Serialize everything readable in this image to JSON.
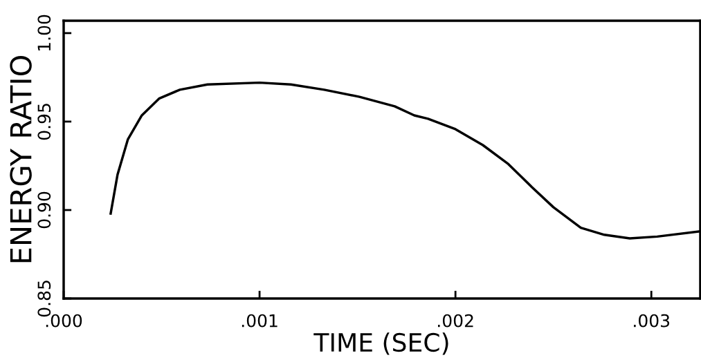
{
  "chart_data": {
    "type": "line",
    "xlabel": "TIME (SEC)",
    "ylabel": "ENERGY RATIO",
    "x": [
      0.00024,
      0.000275,
      0.000328,
      0.000399,
      0.000487,
      0.000593,
      0.000734,
      0.001,
      0.00116,
      0.00133,
      0.00151,
      0.00169,
      0.00179,
      0.00186,
      0.002,
      0.00214,
      0.00227,
      0.00239,
      0.0025,
      0.00264,
      0.00276,
      0.00289,
      0.00303,
      0.00325
    ],
    "series": [
      {
        "color": "#000000",
        "values": [
          0.898,
          0.92,
          0.94,
          0.9535,
          0.963,
          0.968,
          0.971,
          0.972,
          0.971,
          0.968,
          0.964,
          0.9586,
          0.9535,
          0.9516,
          0.9457,
          0.9367,
          0.926,
          0.913,
          0.9016,
          0.89,
          0.886,
          0.884,
          0.885,
          0.888
        ]
      }
    ],
    "xlim": [
      0,
      0.00325
    ],
    "xticks": [
      {
        "value": 0,
        "label": ".000"
      },
      {
        "value": 0.001,
        "label": ".001"
      },
      {
        "value": 0.002,
        "label": ".002"
      },
      {
        "value": 0.003,
        "label": ".003"
      }
    ],
    "ylim": [
      0.85,
      1.007
    ],
    "yticks": [
      0.85,
      {
        "value": 0.9,
        "label": "0.90"
      },
      0.95,
      {
        "value": 1.0,
        "label": "1.00"
      }
    ],
    "grid": false,
    "legend": false,
    "marker": "none",
    "line_style": "solid"
  }
}
